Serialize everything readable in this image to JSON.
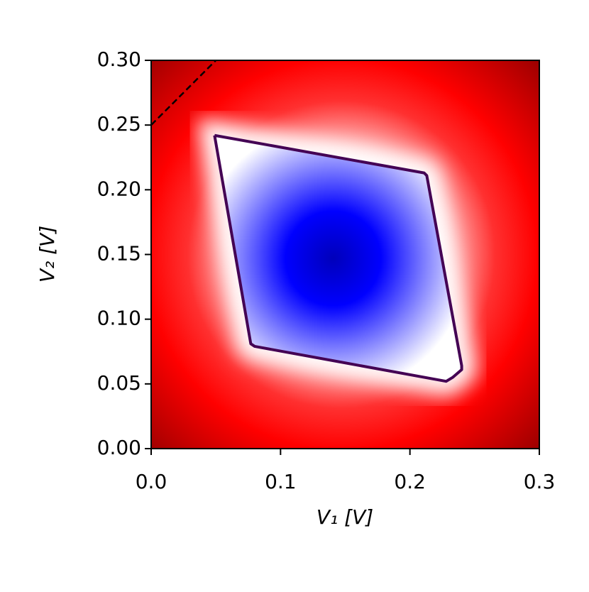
{
  "chart_data": {
    "type": "contour",
    "xlabel": "V₁ [V]",
    "ylabel": "V₂ [V]",
    "xlim": [
      0,
      0.3
    ],
    "ylim": [
      0,
      0.3
    ],
    "xticks": [
      {
        "value": 0,
        "label": "0.0"
      },
      0.1,
      0.2,
      0.3
    ],
    "yticks": [
      {
        "value": 0,
        "label": "0.00"
      },
      0.05,
      {
        "value": 0.1,
        "label": "0.10"
      },
      0.15,
      {
        "value": 0.2,
        "label": "0.20"
      },
      0.25,
      {
        "value": 0.3,
        "label": "0.30"
      }
    ],
    "contour": {
      "color": "#440154",
      "x": [
        0.049,
        0.211,
        0.213,
        0.24,
        0.24,
        0.233,
        0.228,
        0.08,
        0.077,
        0.049
      ],
      "y": [
        0.242,
        0.213,
        0.211,
        0.064,
        0.061,
        0.055,
        0.052,
        0.079,
        0.081,
        0.242
      ]
    },
    "boundary": {
      "color": "#000000",
      "x": [
        0,
        0.05
      ],
      "y": [
        0.25,
        0.3
      ]
    }
  }
}
